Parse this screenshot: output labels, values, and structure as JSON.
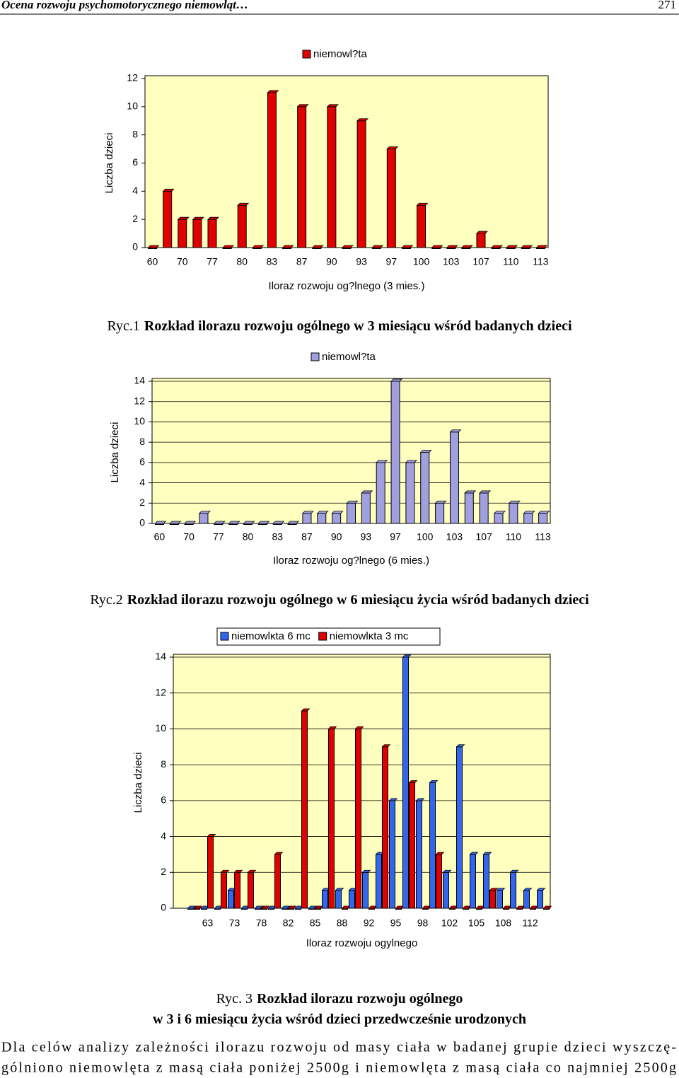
{
  "header": {
    "title": "Ocena rozwoju psychomotorycznego niemowląt…",
    "page": "271"
  },
  "chart_data": [
    {
      "type": "bar",
      "ylabel": "Liczba dzieci",
      "xlabel": "Iloraz rozwoju og?lnego (3 mies.)",
      "categories": [
        "60",
        null,
        "70",
        null,
        "77",
        null,
        "80",
        null,
        "83",
        null,
        "87",
        null,
        "90",
        null,
        "93",
        null,
        "97",
        null,
        "100",
        null,
        "103",
        null,
        "107",
        null,
        "110",
        null,
        "113"
      ],
      "series": [
        {
          "name": "niemowl?ta",
          "color": "#e00000",
          "values": [
            0,
            4,
            2,
            2,
            2,
            0,
            3,
            0,
            11,
            0,
            10,
            0,
            10,
            0,
            9,
            0,
            7,
            0,
            3,
            0,
            0,
            0,
            1,
            0,
            0,
            0,
            0
          ]
        }
      ],
      "ylim": [
        0,
        12
      ],
      "yticks": [
        0,
        2,
        4,
        6,
        8,
        10,
        12
      ],
      "grid": false,
      "legend": "top",
      "caption": {
        "label": "Ryc.1",
        "text": [
          "Rozkład ilorazu rozwoju ogólnego w 3 miesiącu wśród badanych dzieci"
        ]
      }
    },
    {
      "type": "bar",
      "ylabel": "Liczba dzieci",
      "xlabel": "Iloraz rozwoju og?lnego (6 mies.)",
      "categories": [
        "60",
        null,
        "70",
        null,
        "77",
        null,
        "80",
        null,
        "83",
        null,
        "87",
        null,
        "90",
        null,
        "93",
        null,
        "97",
        null,
        "100",
        null,
        "103",
        null,
        "107",
        null,
        "110",
        null,
        "113"
      ],
      "series": [
        {
          "name": "niemowl?ta",
          "color": "#a0a0e0",
          "values": [
            0,
            0,
            0,
            1,
            0,
            0,
            0,
            0,
            0,
            0,
            1,
            1,
            1,
            2,
            3,
            6,
            14,
            6,
            7,
            2,
            9,
            3,
            3,
            1,
            2,
            1,
            1
          ]
        }
      ],
      "ylim": [
        0,
        14
      ],
      "yticks": [
        0,
        2,
        4,
        6,
        8,
        10,
        12,
        14
      ],
      "grid": true,
      "legend": "top",
      "caption": {
        "label": "Ryc.2",
        "text": [
          "Rozkład ilorazu rozwoju ogólnego w 6 miesiącu życia wśród badanych dzieci"
        ]
      }
    },
    {
      "type": "bar",
      "ylabel": "Liczba dzieci",
      "xlabel": "Iloraz rozwoju ogylnego",
      "categories": [
        null,
        "63",
        null,
        "73",
        null,
        "78",
        null,
        "82",
        null,
        "85",
        null,
        "88",
        null,
        "92",
        null,
        "95",
        null,
        "98",
        null,
        "102",
        null,
        "105",
        null,
        "108",
        null,
        "112",
        null
      ],
      "series": [
        {
          "name": "niemowlκta 6 mc",
          "color": "#3366ee",
          "values": [
            0,
            0,
            0,
            1,
            0,
            0,
            0,
            0,
            0,
            0,
            1,
            1,
            1,
            2,
            3,
            6,
            14,
            6,
            7,
            2,
            9,
            3,
            3,
            1,
            2,
            1,
            1
          ]
        },
        {
          "name": "niemowlκta 3 mc",
          "color": "#e00000",
          "values": [
            0,
            4,
            2,
            2,
            2,
            0,
            3,
            0,
            11,
            0,
            10,
            0,
            10,
            0,
            9,
            0,
            7,
            0,
            3,
            0,
            0,
            0,
            1,
            0,
            0,
            0,
            0
          ]
        }
      ],
      "ylim": [
        0,
        14
      ],
      "yticks": [
        0,
        2,
        4,
        6,
        8,
        10,
        12,
        14
      ],
      "grid": true,
      "legend": "top",
      "caption": {
        "label": "Ryc. 3",
        "text": [
          "Rozkład ilorazu rozwoju ogólnego",
          "w 3 i 6 miesiącu życia wśród dzieci przedwcześnie urodzonych"
        ]
      }
    }
  ],
  "paragraph": [
    "Dla celów analizy zależności ilorazu rozwoju od masy ciała w badanej grupie dzieci wyszczę-",
    "gólniono niemowlęta z masą ciała poniżej 2500g i niemowlęta z masą ciała co najmniej 2500g"
  ]
}
